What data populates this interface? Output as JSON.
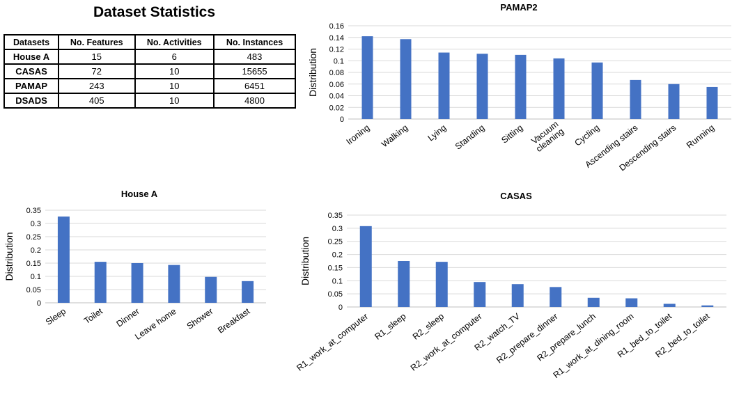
{
  "stats": {
    "title": "Dataset Statistics",
    "headers": [
      "Datasets",
      "No. Features",
      "No. Activities",
      "No. Instances"
    ],
    "rows": [
      [
        "House A",
        "15",
        "6",
        "483"
      ],
      [
        "CASAS",
        "72",
        "10",
        "15655"
      ],
      [
        "PAMAP",
        "243",
        "10",
        "6451"
      ],
      [
        "DSADS",
        "405",
        "10",
        "4800"
      ]
    ]
  },
  "colors": {
    "bar": "#4472C4",
    "grid": "#d9d9d9"
  },
  "chart_data": [
    {
      "type": "bar",
      "title": "PAMAP2",
      "ylabel": "Distribution",
      "xlabel": "",
      "categories": [
        "Ironing",
        "Walking",
        "Lying",
        "Standing",
        "Sitting",
        "Vacuum\ncleaning",
        "Cycling",
        "Ascending stairs",
        "Descending stairs",
        "Running"
      ],
      "values": [
        0.142,
        0.137,
        0.114,
        0.112,
        0.11,
        0.104,
        0.097,
        0.067,
        0.06,
        0.055
      ],
      "ylim": [
        0,
        0.16
      ],
      "yticks": [
        "0",
        "0.02",
        "0.04",
        "0.06",
        "0.08",
        "0.1",
        "0.12",
        "0.14",
        "0.16"
      ],
      "grid": true,
      "legend": "none"
    },
    {
      "type": "bar",
      "title": "House A",
      "ylabel": "Distribution",
      "xlabel": "",
      "categories": [
        "Sleep",
        "Toilet",
        "Dinner",
        "Leave home",
        "Shower",
        "Breakfast"
      ],
      "values": [
        0.326,
        0.155,
        0.15,
        0.143,
        0.098,
        0.082
      ],
      "ylim": [
        0,
        0.35
      ],
      "yticks": [
        "0",
        "0.05",
        "0.1",
        "0.15",
        "0.2",
        "0.25",
        "0.3",
        "0.35"
      ],
      "grid": true,
      "legend": "none"
    },
    {
      "type": "bar",
      "title": "CASAS",
      "ylabel": "Distribution",
      "xlabel": "",
      "categories": [
        "R1_work_at_computer",
        "R1_sleep",
        "R2_sleep",
        "R2_work_at_computer",
        "R2_watch_TV",
        "R2_prepare_dinner",
        "R2_prepare_lunch",
        "R1_work_at_dining_room",
        "R1_bed_to_toilet",
        "R2_bed_to_toilet"
      ],
      "values": [
        0.308,
        0.175,
        0.172,
        0.095,
        0.087,
        0.076,
        0.035,
        0.033,
        0.012,
        0.006
      ],
      "ylim": [
        0,
        0.35
      ],
      "yticks": [
        "0",
        "0.05",
        "0.1",
        "0.15",
        "0.2",
        "0.25",
        "0.3",
        "0.35"
      ],
      "grid": true,
      "legend": "none"
    }
  ]
}
